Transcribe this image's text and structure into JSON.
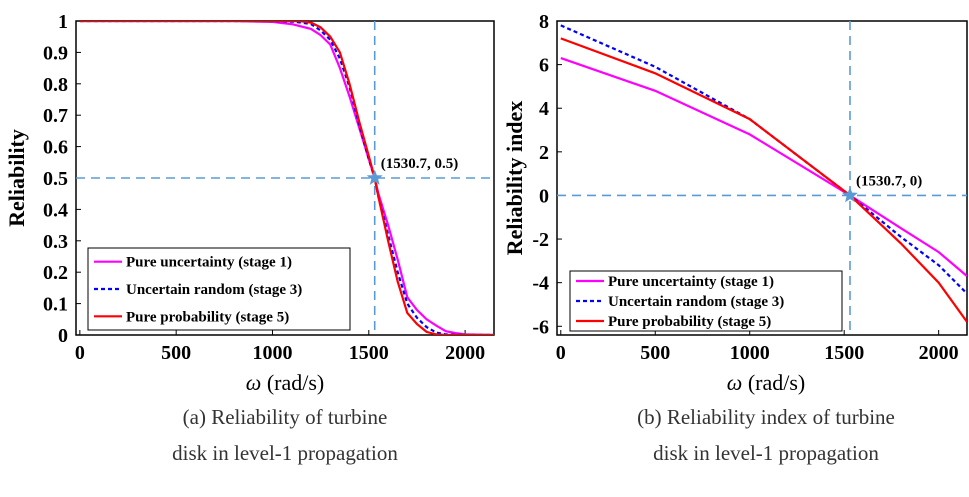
{
  "chart_data": [
    {
      "type": "line",
      "xlabel_symbol": "ω",
      "xlabel_unit": " (rad/s)",
      "ylabel": "Reliability",
      "xlim": [
        -20,
        2150
      ],
      "ylim": [
        0,
        1
      ],
      "xticks": [
        "0",
        "500",
        "1000",
        "1500",
        "2000"
      ],
      "xtick_values": [
        0,
        500,
        1000,
        1500,
        2000
      ],
      "yticks": [
        "0",
        "0.1",
        "0.2",
        "0.3",
        "0.4",
        "0.5",
        "0.6",
        "0.7",
        "0.8",
        "0.9",
        "1"
      ],
      "ytick_values": [
        0,
        0.1,
        0.2,
        0.3,
        0.4,
        0.5,
        0.6,
        0.7,
        0.8,
        0.9,
        1
      ],
      "series": [
        {
          "name": "Pure uncertainty (stage 1)",
          "color": "#ff00ff",
          "style": "solid",
          "x": [
            0,
            800,
            1000,
            1100,
            1200,
            1250,
            1300,
            1350,
            1400,
            1450,
            1500,
            1530.7,
            1550,
            1600,
            1650,
            1700,
            1750,
            1800,
            1850,
            1900,
            1950,
            2000,
            2150
          ],
          "y": [
            1,
            1,
            0.997,
            0.99,
            0.975,
            0.955,
            0.925,
            0.85,
            0.76,
            0.66,
            0.56,
            0.5,
            0.45,
            0.35,
            0.24,
            0.12,
            0.08,
            0.05,
            0.03,
            0.012,
            0.006,
            0.002,
            0
          ]
        },
        {
          "name": "Uncertain random (stage 3)",
          "color": "#0000ff",
          "style": "dashed",
          "x": [
            0,
            1000,
            1100,
            1150,
            1200,
            1250,
            1300,
            1350,
            1400,
            1450,
            1500,
            1530.7,
            1550,
            1600,
            1650,
            1700,
            1750,
            1800,
            1850,
            1900,
            2000,
            2150
          ],
          "y": [
            1,
            1,
            0.998,
            0.995,
            0.99,
            0.97,
            0.94,
            0.88,
            0.79,
            0.67,
            0.56,
            0.5,
            0.44,
            0.32,
            0.2,
            0.1,
            0.055,
            0.025,
            0.008,
            0.002,
            0,
            0
          ]
        },
        {
          "name": "Pure probability (stage 5)",
          "color": "#ff0000",
          "style": "solid",
          "x": [
            0,
            1100,
            1150,
            1200,
            1250,
            1300,
            1350,
            1400,
            1450,
            1500,
            1530.7,
            1550,
            1600,
            1650,
            1700,
            1750,
            1800,
            1850,
            1900,
            2000,
            2150
          ],
          "y": [
            1,
            1,
            0.999,
            0.995,
            0.98,
            0.95,
            0.9,
            0.8,
            0.68,
            0.57,
            0.5,
            0.44,
            0.3,
            0.17,
            0.07,
            0.035,
            0.01,
            0.002,
            0,
            0,
            0
          ]
        }
      ],
      "reference": {
        "x": 1530.7,
        "y": 0.5,
        "label": "(1530.7, 0.5)"
      },
      "legend": "bottom-left",
      "caption_line1": "(a) Reliability of turbine",
      "caption_line2": "disk in level-1 propagation"
    },
    {
      "type": "line",
      "xlabel_symbol": "ω",
      "xlabel_unit": " (rad/s)",
      "ylabel": "Reliability index",
      "xlim": [
        -20,
        2150
      ],
      "ylim": [
        -6.4,
        8
      ],
      "xticks": [
        "0",
        "500",
        "1000",
        "1500",
        "2000"
      ],
      "xtick_values": [
        0,
        500,
        1000,
        1500,
        2000
      ],
      "yticks": [
        "-6",
        "-4",
        "-2",
        "0",
        "2",
        "4",
        "6",
        "8"
      ],
      "ytick_values": [
        -6,
        -4,
        -2,
        0,
        2,
        4,
        6,
        8
      ],
      "series": [
        {
          "name": "Pure uncertainty (stage 1)",
          "color": "#ff00ff",
          "style": "solid",
          "x": [
            0,
            500,
            1000,
            1530.7,
            1800,
            2000,
            2150
          ],
          "y": [
            6.3,
            4.8,
            2.8,
            0,
            -1.5,
            -2.6,
            -3.7
          ]
        },
        {
          "name": "Uncertain random (stage 3)",
          "color": "#0000ff",
          "style": "dashed",
          "x": [
            0,
            500,
            1000,
            1530.7,
            1800,
            2000,
            2150
          ],
          "y": [
            7.8,
            5.9,
            3.5,
            0,
            -1.9,
            -3.2,
            -4.5
          ]
        },
        {
          "name": "Pure probability (stage 5)",
          "color": "#ff0000",
          "style": "solid",
          "x": [
            0,
            500,
            1000,
            1530.7,
            1800,
            2000,
            2150
          ],
          "y": [
            7.2,
            5.6,
            3.5,
            0,
            -2.2,
            -4.0,
            -5.8
          ]
        }
      ],
      "reference": {
        "x": 1530.7,
        "y": 0,
        "label": "(1530.7, 0)"
      },
      "legend": "bottom-left",
      "caption_line1": "(b) Reliability index of turbine",
      "caption_line2": "disk in level-1 propagation"
    }
  ]
}
